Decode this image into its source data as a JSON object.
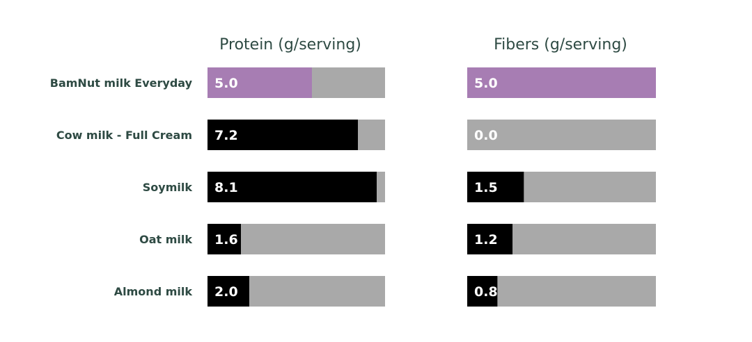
{
  "chart_data": [
    {
      "type": "bar",
      "orientation": "horizontal",
      "title": "Protein (g/serving)",
      "categories": [
        "BamNut milk Everyday",
        "Cow milk - Full Cream",
        "Soymilk",
        "Oat milk",
        "Almond milk"
      ],
      "values": [
        5.0,
        7.2,
        8.1,
        1.6,
        2.0
      ],
      "value_labels": [
        "5.0",
        "7.2",
        "8.1",
        "1.6",
        "2.0"
      ],
      "xlim": [
        0,
        8.5
      ],
      "highlight_index": 0
    },
    {
      "type": "bar",
      "orientation": "horizontal",
      "title": "Fibers (g/serving)",
      "categories": [
        "BamNut milk Everyday",
        "Cow milk - Full Cream",
        "Soymilk",
        "Oat milk",
        "Almond milk"
      ],
      "values": [
        5.0,
        0.0,
        1.5,
        1.2,
        0.8
      ],
      "value_labels": [
        "5.0",
        "0.0",
        "1.5",
        "1.2",
        "0.8"
      ],
      "xlim": [
        0,
        5.0
      ],
      "highlight_index": 0
    }
  ],
  "colors": {
    "highlight": "#a77db3",
    "bar": "#000000",
    "track": "#a9a9a9",
    "label_text": "#2e4a43",
    "value_text": "#ffffff"
  }
}
